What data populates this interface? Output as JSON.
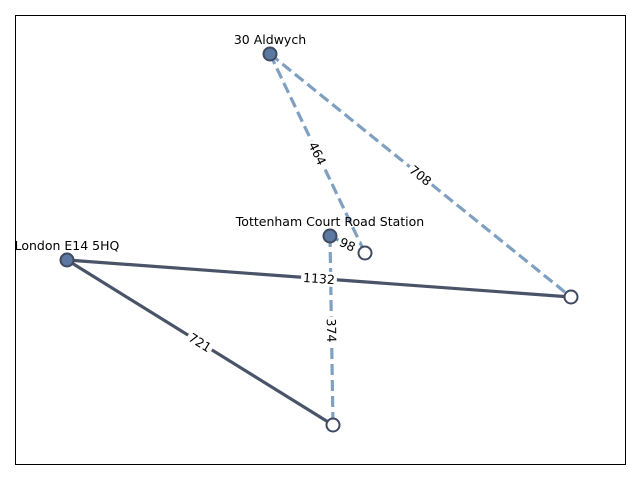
{
  "colors": {
    "solid_edge": "#4a5468",
    "dashed_edge": "#7fa0c0",
    "filled_node": "#5a78a0",
    "node_stroke": "#3f4a60",
    "open_node_fill": "#ffffff",
    "frame": "#000000"
  },
  "graph": {
    "nodes": [
      {
        "id": "aldwych",
        "label": "30 Aldwych",
        "filled": true
      },
      {
        "id": "tcr",
        "label": "Tottenham Court Road Station",
        "filled": true
      },
      {
        "id": "e14",
        "label": "London E14 5HQ",
        "filled": true
      },
      {
        "id": "n_right",
        "label": "",
        "filled": false
      },
      {
        "id": "n_mid",
        "label": "",
        "filled": false
      },
      {
        "id": "n_bottom",
        "label": "",
        "filled": false
      }
    ],
    "edges": [
      {
        "from": "aldwych",
        "to": "n_mid",
        "label": "464",
        "style": "dashed"
      },
      {
        "from": "aldwych",
        "to": "n_right",
        "label": "708",
        "style": "dashed"
      },
      {
        "from": "tcr",
        "to": "n_mid",
        "label": "98",
        "style": "dashed"
      },
      {
        "from": "tcr",
        "to": "n_bottom",
        "label": "374",
        "style": "dashed"
      },
      {
        "from": "e14",
        "to": "n_right",
        "label": "1132",
        "style": "solid"
      },
      {
        "from": "e14",
        "to": "n_bottom",
        "label": "721",
        "style": "solid"
      }
    ]
  }
}
